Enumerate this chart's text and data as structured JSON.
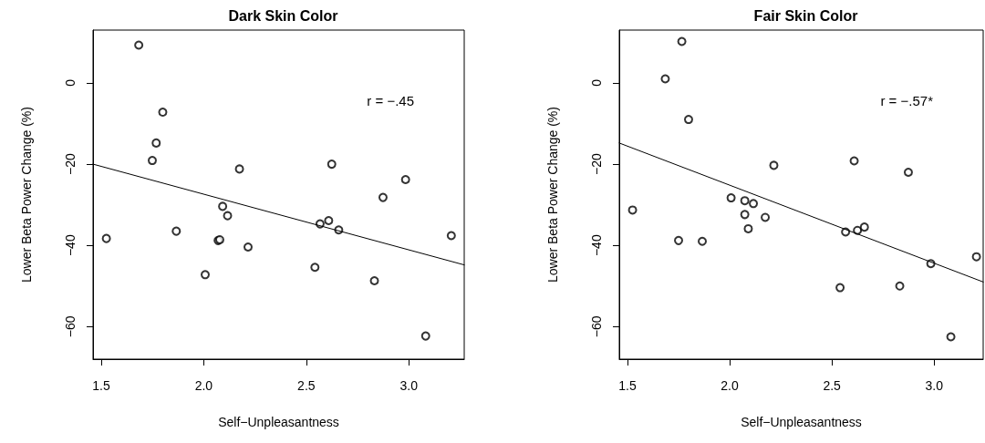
{
  "chart_data": [
    {
      "type": "scatter",
      "title": "Dark Skin Color",
      "xlabel": "Self−Unpleasantness",
      "ylabel": "Lower Beta Power Change (%)",
      "annotations": [
        "r = −.45"
      ],
      "xlim": [
        1.46,
        3.27
      ],
      "xticks": [
        {
          "value": 1.5,
          "label": "1.5"
        },
        {
          "value": 2,
          "label": "2.0"
        },
        {
          "value": 2.5,
          "label": "2.5"
        },
        {
          "value": 3,
          "label": "3.0"
        }
      ],
      "ylim": [
        -68,
        13
      ],
      "yticks": [
        {
          "value": -60,
          "label": "−60"
        },
        {
          "value": -40,
          "label": "−40"
        },
        {
          "value": -20,
          "label": "−20"
        },
        0
      ],
      "series": [
        {
          "marker": "circle",
          "color": "#000000",
          "x": [
            1.525,
            1.683,
            1.8,
            1.768,
            1.749,
            1.866,
            2.007,
            2.07,
            2.078,
            2.092,
            2.116,
            2.174,
            2.216,
            2.542,
            2.567,
            2.609,
            2.624,
            2.658,
            2.832,
            2.874,
            2.984,
            3.082,
            3.207
          ],
          "values": [
            -38.3,
            9.3,
            -7.2,
            -14.8,
            -19.1,
            -36.5,
            -47.2,
            -38.8,
            -38.6,
            -30.4,
            -32.7,
            -21.2,
            -40.4,
            -45.4,
            -34.7,
            -33.9,
            -20.0,
            -36.2,
            -48.7,
            -28.2,
            -23.8,
            -62.3,
            -37.6
          ]
        },
        {
          "type": "line",
          "marker": "none",
          "line_style": "solid",
          "color": "#000000",
          "x": [
            1.46,
            3.27
          ],
          "values": [
            -20.0,
            -44.8
          ]
        }
      ]
    },
    {
      "type": "scatter",
      "title": "Fair Skin Color",
      "xlabel": "Self−Unpleasantness",
      "ylabel": "Lower Beta Power Change (%)",
      "annotations": [
        "r = −.57*"
      ],
      "xlim": [
        1.46,
        3.24
      ],
      "xticks": [
        {
          "value": 1.5,
          "label": "1.5"
        },
        {
          "value": 2,
          "label": "2.0"
        },
        {
          "value": 2.5,
          "label": "2.5"
        },
        {
          "value": 3,
          "label": "3.0"
        }
      ],
      "ylim": [
        -68,
        13
      ],
      "yticks": [
        {
          "value": -60,
          "label": "−60"
        },
        {
          "value": -40,
          "label": "−40"
        },
        {
          "value": -20,
          "label": "−20"
        },
        0
      ],
      "series": [
        {
          "marker": "circle",
          "color": "#000000",
          "x": [
            1.525,
            1.685,
            1.766,
            1.799,
            1.75,
            1.866,
            2.007,
            2.074,
            2.074,
            2.116,
            2.091,
            2.174,
            2.216,
            2.54,
            2.567,
            2.609,
            2.625,
            2.659,
            2.832,
            2.874,
            2.984,
            3.082,
            3.207
          ],
          "values": [
            -31.3,
            1.0,
            10.2,
            -9.0,
            -38.8,
            -39.0,
            -28.3,
            -29.0,
            -32.4,
            -29.7,
            -35.9,
            -33.1,
            -20.3,
            -50.4,
            -36.7,
            -19.2,
            -36.3,
            -35.5,
            -50.0,
            -22.0,
            -44.5,
            -62.5,
            -42.8
          ]
        },
        {
          "type": "line",
          "marker": "none",
          "line_style": "solid",
          "color": "#000000",
          "x": [
            1.46,
            3.24
          ],
          "values": [
            -14.8,
            -49.0
          ]
        }
      ]
    }
  ]
}
